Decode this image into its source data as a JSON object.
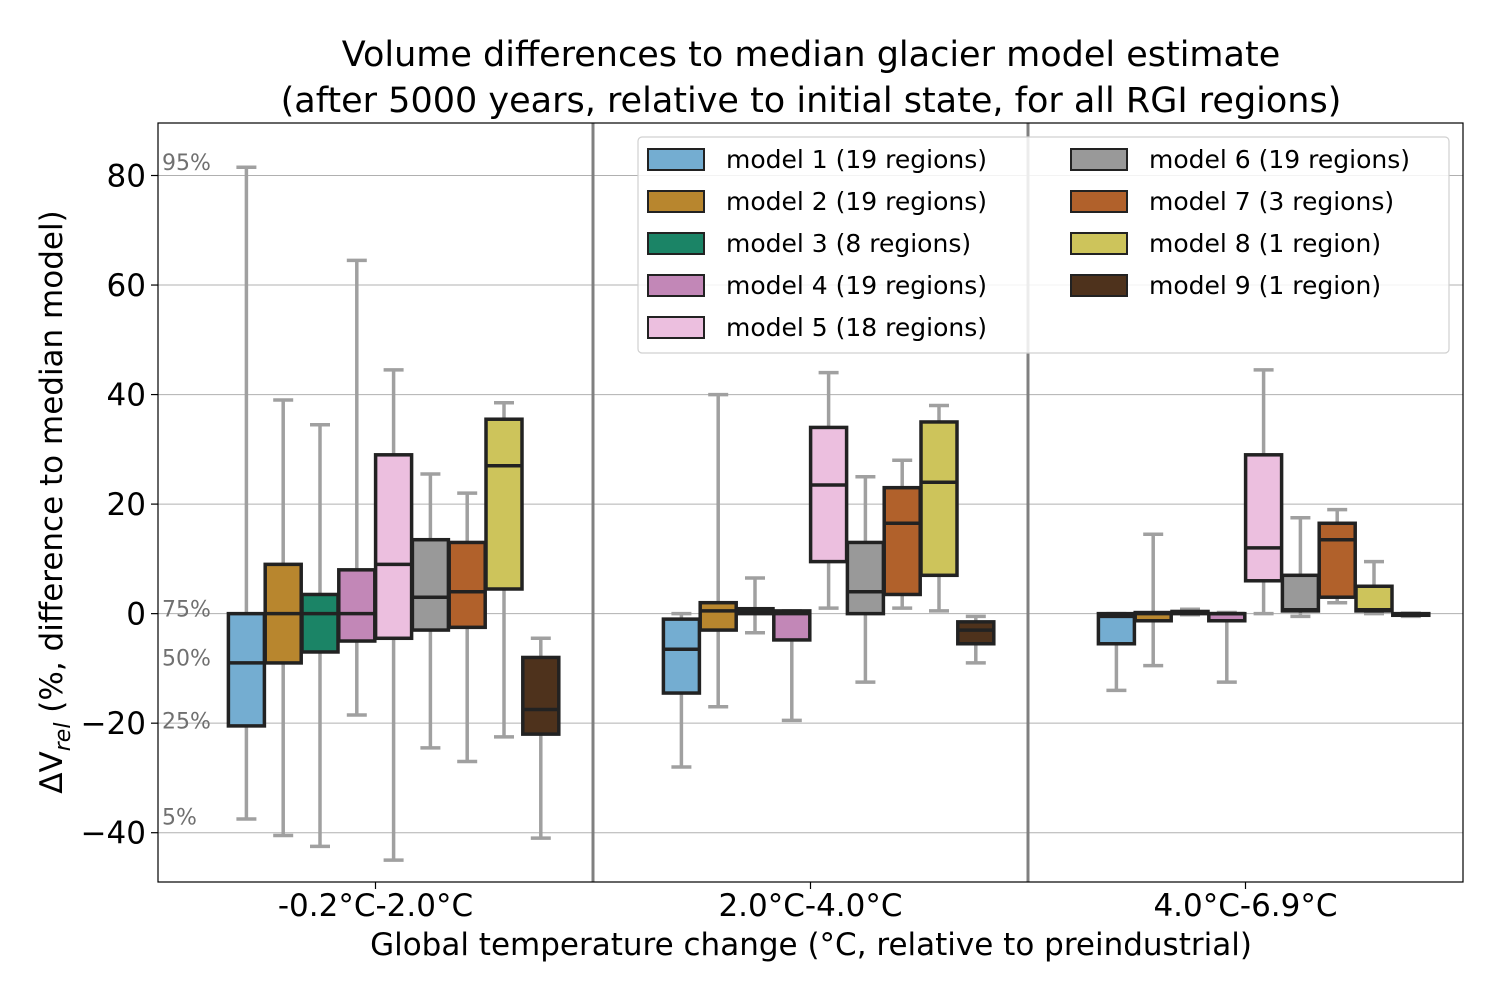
{
  "chart_data": {
    "type": "box",
    "title": "Volume differences to median glacier model estimate",
    "subtitle": "(after 5000 years, relative to initial state, for all RGI regions)",
    "xlabel": "Global temperature change (°C, relative to preindustrial)",
    "ylabel_main": "ΔV",
    "ylabel_sub": "rel",
    "ylabel_rest": " (%, difference to median model)",
    "ylim": [
      -49,
      90
    ],
    "yticks": [
      -40,
      -20,
      0,
      20,
      40,
      60,
      80
    ],
    "ytick_labels": [
      "−40",
      "−20",
      "0",
      "20",
      "40",
      "60",
      "80"
    ],
    "grid": "horizontal",
    "legend_placement": "top-right",
    "percentile_labels": [
      {
        "text": "95%",
        "y": 81
      },
      {
        "text": "75%",
        "y": -0.5
      },
      {
        "text": "50%",
        "y": -9.5
      },
      {
        "text": "25%",
        "y": -21
      },
      {
        "text": "5%",
        "y": -38.5
      }
    ],
    "categories": [
      "-0.2°C-2.0°C",
      "2.0°C-4.0°C",
      "4.0°C-6.9°C"
    ],
    "series": [
      {
        "name": "model 1 (19 regions)",
        "color": "#74add1",
        "boxes": [
          {
            "whislo": -37.5,
            "q1": -20.5,
            "med": -9,
            "q3": 0,
            "whishi": 81.5
          },
          {
            "whislo": -28,
            "q1": -14.5,
            "med": -6.5,
            "q3": -1,
            "whishi": 0
          },
          {
            "whislo": -14,
            "q1": -5.5,
            "med": -0.5,
            "q3": 0,
            "whishi": 0
          }
        ]
      },
      {
        "name": "model 2 (19 regions)",
        "color": "#b8862e",
        "boxes": [
          {
            "whislo": -40.5,
            "q1": -9,
            "med": 0,
            "q3": 9,
            "whishi": 39
          },
          {
            "whislo": -17,
            "q1": -3,
            "med": 0.5,
            "q3": 2,
            "whishi": 40
          },
          {
            "whislo": -9.5,
            "q1": -1.3,
            "med": 0,
            "q3": 0.2,
            "whishi": 14.5
          }
        ]
      },
      {
        "name": "model 3 (8 regions)",
        "color": "#1b8466",
        "boxes": [
          {
            "whislo": -42.5,
            "q1": -7,
            "med": 0,
            "q3": 3.5,
            "whishi": 34.5
          },
          {
            "whislo": -3.5,
            "q1": 0,
            "med": 0.3,
            "q3": 0.9,
            "whishi": 6.5
          },
          {
            "whislo": -0.2,
            "q1": 0,
            "med": 0.1,
            "q3": 0.4,
            "whishi": 0.8
          }
        ]
      },
      {
        "name": "model 4 (19 regions)",
        "color": "#c287b7",
        "boxes": [
          {
            "whislo": -18.5,
            "q1": -5,
            "med": 0,
            "q3": 8,
            "whishi": 64.5
          },
          {
            "whislo": -19.5,
            "q1": -4.8,
            "med": 0,
            "q3": 0.5,
            "whishi": 0.5
          },
          {
            "whislo": -12.5,
            "q1": -1.3,
            "med": 0,
            "q3": 0,
            "whishi": 0.2
          }
        ]
      },
      {
        "name": "model 5 (18 regions)",
        "color": "#ecbfdf",
        "boxes": [
          {
            "whislo": -45,
            "q1": -4.5,
            "med": 9,
            "q3": 29,
            "whishi": 44.5
          },
          {
            "whislo": 1,
            "q1": 9.5,
            "med": 23.5,
            "q3": 34,
            "whishi": 44
          },
          {
            "whislo": 0,
            "q1": 6,
            "med": 12,
            "q3": 29,
            "whishi": 44.5
          }
        ]
      },
      {
        "name": "model 6 (19 regions)",
        "color": "#999999",
        "boxes": [
          {
            "whislo": -24.5,
            "q1": -3,
            "med": 3,
            "q3": 13.5,
            "whishi": 25.5
          },
          {
            "whislo": -12.5,
            "q1": 0,
            "med": 4,
            "q3": 13,
            "whishi": 25
          },
          {
            "whislo": -0.5,
            "q1": 0.5,
            "med": 0.7,
            "q3": 7,
            "whishi": 17.5
          }
        ]
      },
      {
        "name": "model 7 (3 regions)",
        "color": "#b1612b",
        "boxes": [
          {
            "whislo": -27,
            "q1": -2.5,
            "med": 4,
            "q3": 13,
            "whishi": 22
          },
          {
            "whislo": 1,
            "q1": 3.5,
            "med": 16.5,
            "q3": 23,
            "whishi": 28
          },
          {
            "whislo": 2,
            "q1": 3,
            "med": 13.5,
            "q3": 16.5,
            "whishi": 19
          }
        ]
      },
      {
        "name": "model 8 (1 region)",
        "color": "#cdc45b",
        "boxes": [
          {
            "whislo": -22.5,
            "q1": 4.5,
            "med": 27,
            "q3": 35.5,
            "whishi": 38.5
          },
          {
            "whislo": 0.5,
            "q1": 7,
            "med": 24,
            "q3": 35,
            "whishi": 38
          },
          {
            "whislo": 0,
            "q1": 0.5,
            "med": 0.7,
            "q3": 5,
            "whishi": 9.5
          }
        ]
      },
      {
        "name": "model 9 (1 region)",
        "color": "#4e321c",
        "boxes": [
          {
            "whislo": -41,
            "q1": -22,
            "med": -17.5,
            "q3": -8,
            "whishi": -4.5
          },
          {
            "whislo": -9,
            "q1": -5.5,
            "med": -3,
            "q3": -1.5,
            "whishi": -0.5
          },
          {
            "whislo": -0.5,
            "q1": -0.3,
            "med": -0.1,
            "q3": 0,
            "whishi": 0.1
          }
        ]
      }
    ]
  }
}
